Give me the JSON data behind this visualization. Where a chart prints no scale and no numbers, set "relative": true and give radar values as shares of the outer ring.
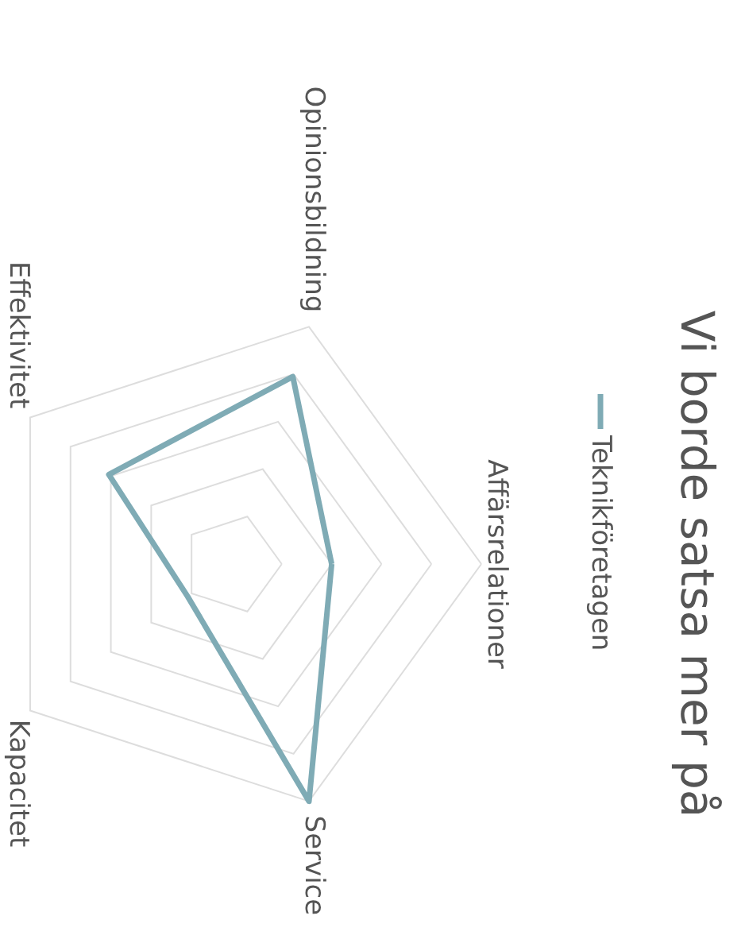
{
  "chart_data": {
    "type": "radar",
    "title": "Vi borde satsa mer på",
    "relative": true,
    "grid": true,
    "legend": "right",
    "categories": [
      "Affärsrelationer",
      "Service",
      "Kapacitet",
      "Effektivitet",
      "Opinionsbildning"
    ],
    "series": [
      {
        "name": "Teknikföretagen",
        "color": "#7fabb5",
        "values": [
          0.4,
          1.0,
          0.22,
          0.61,
          0.79
        ]
      }
    ]
  }
}
